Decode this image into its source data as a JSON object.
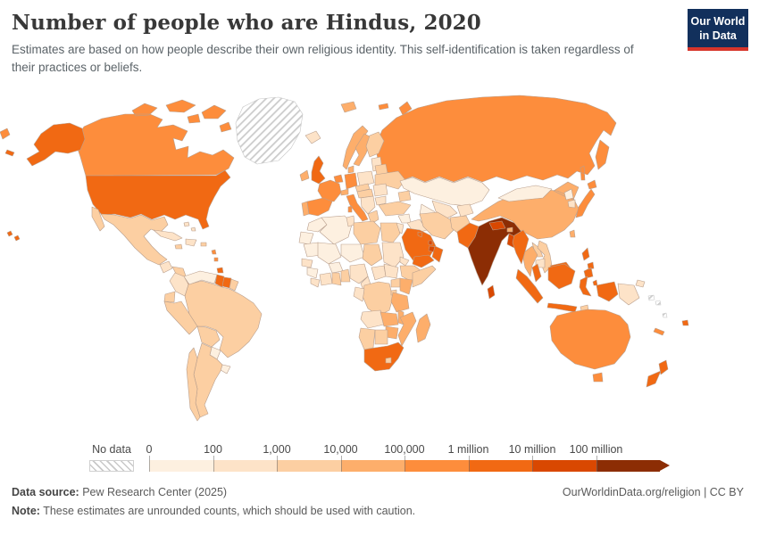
{
  "header": {
    "title": "Number of people who are Hindus, 2020",
    "subtitle": "Estimates are based on how people describe their own religious identity. This self-identification is taken regardless of their practices or beliefs.",
    "logo_line1": "Our World",
    "logo_line2": "in Data",
    "logo_bg": "#12305c",
    "logo_accent": "#d7352b"
  },
  "chart_data": {
    "type": "choropleth_map",
    "title": "Number of people who are Hindus, 2020",
    "year": "2020",
    "unit": "people",
    "projection": "world",
    "legend": {
      "no_data_label": "No data",
      "tick_labels": [
        "0",
        "100",
        "1,000",
        "10,000",
        "100,000",
        "1 million",
        "10 million",
        "100 million"
      ],
      "bucket_labels": [
        "0–100",
        "100–1,000",
        "1,000–10,000",
        "10,000–100,000",
        "100,000–1 million",
        "1 million–10 million",
        "10 million–100 million",
        "100 million+"
      ],
      "palette": [
        "#fdf0e0",
        "#fde3c8",
        "#fccfa2",
        "#fdae6b",
        "#fd8d3c",
        "#f16913",
        "#d94801",
        "#8c2d04"
      ],
      "no_data_pattern": "diagonal-hatch",
      "open_ended": true
    },
    "countries": {
      "united-states": 6,
      "canada": 5,
      "greenland": "no-data",
      "iceland": 2,
      "mexico": 3,
      "guatemala": 2,
      "honduras-nicaragua": 3,
      "costa-rica": 3,
      "panama": 5,
      "cuba": 2,
      "jamaica": 3,
      "hispaniola": 2,
      "puerto-rico": 3,
      "bahamas": 2,
      "lesser-antilles": 5,
      "trinidad-and-tobago": 6,
      "venezuela": 1,
      "colombia": 2,
      "guyana": 6,
      "suriname": 6,
      "french-guiana": 3,
      "ecuador": 3,
      "peru": 3,
      "brazil": 3,
      "bolivia": 3,
      "paraguay": 1,
      "uruguay": 1,
      "argentina": 3,
      "chile": 3,
      "ireland": 4,
      "united-kingdom": 6,
      "portugal": 4,
      "spain": 5,
      "france": 5,
      "belgium-netherlands": 5,
      "germany": 5,
      "denmark": 4,
      "norway": 4,
      "sweden": 4,
      "finland": 3,
      "baltic-states": 2,
      "poland": 2,
      "czechia-slovakia": 3,
      "switzerland": 4,
      "austria-hungary": 3,
      "italy": 5,
      "balkans": 2,
      "greece": 3,
      "romania": 2,
      "bulgaria": 2,
      "ukraine": 3,
      "belarus": 3,
      "russia": 5,
      "kazakhstan": 1,
      "uzbekistan": 2,
      "turkmenistan": 1,
      "kyrgyzstan-tajikistan": 2,
      "caucasus": 3,
      "turkey": 3,
      "syria": 1,
      "israel-jordan": 2,
      "iraq": 2,
      "iran": 3,
      "afghanistan": 3,
      "saudi-arabia": 6,
      "kuwait": 6,
      "qatar": 7,
      "united-arab-emirates": 7,
      "oman": 6,
      "yemen": 6,
      "pakistan": 6,
      "india": 8,
      "nepal": 7,
      "bhutan": 4,
      "bangladesh": 7,
      "sri-lanka": 7,
      "china": 4,
      "mongolia": 1,
      "north-korea": 1,
      "south-korea": 2,
      "japan": 5,
      "taiwan": 4,
      "myanmar": 6,
      "thailand": 4,
      "laos": 3,
      "cambodia": 2,
      "vietnam": 3,
      "malaysia": 6,
      "philippines": 6,
      "indonesia": 6,
      "timor-leste": 3,
      "papua-new-guinea": 2,
      "solomon-islands": "no-data",
      "vanuatu": "no-data",
      "fiji": 6,
      "new-caledonia": 5,
      "australia": 5,
      "new-zealand": 6,
      "morocco": 1,
      "western-sahara": 1,
      "algeria": 1,
      "tunisia": 2,
      "libya": 3,
      "egypt": 3,
      "mauritania": 1,
      "mali": 1,
      "niger": 1,
      "chad": 3,
      "sudan": 2,
      "eritrea": 2,
      "senegal": 2,
      "guinea": 1,
      "sierra-leone-liberia": 2,
      "burkina-faso": 1,
      "cote-divoire": 2,
      "ghana": 3,
      "togo-benin": 3,
      "nigeria": 2,
      "cameroon": 2,
      "central-african-republic": 2,
      "south-sudan": 2,
      "ethiopia": 3,
      "somalia": 3,
      "uganda": 3,
      "kenya": 4,
      "dr-congo": 3,
      "congo-gabon": 2,
      "rwanda-burundi": 3,
      "tanzania": 4,
      "angola": 2,
      "zambia": 4,
      "malawi": 4,
      "mozambique": 4,
      "zimbabwe": 4,
      "botswana": 3,
      "namibia": 3,
      "south-africa": 6,
      "lesotho": 3,
      "madagascar": 4
    }
  },
  "footer": {
    "source_label": "Data source:",
    "source_value": " Pew Research Center (2025)",
    "note_label": "Note:",
    "note_value": " These estimates are unrounded counts, which should be used with caution.",
    "right_text": "OurWorldinData.org/religion | CC BY"
  }
}
